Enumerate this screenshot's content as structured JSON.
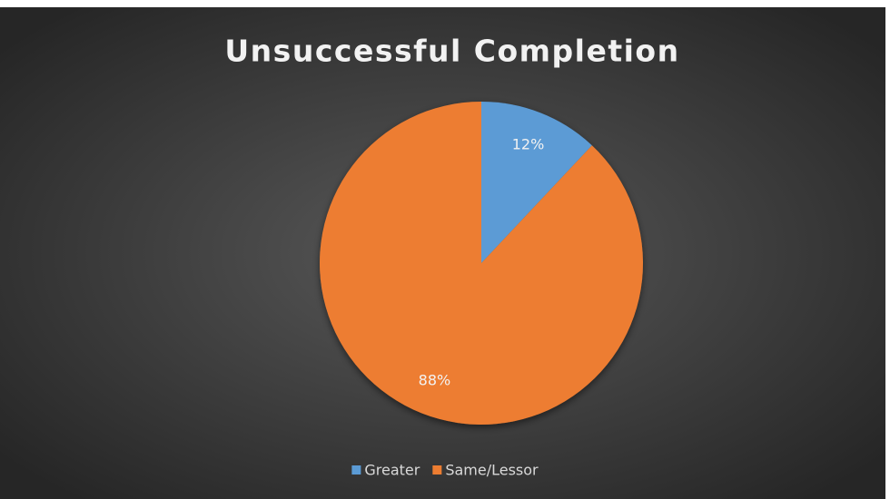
{
  "chart_data": {
    "type": "pie",
    "title": "Unsuccessful Completion",
    "categories": [
      "Greater",
      "Same/Lessor"
    ],
    "values": [
      12,
      88
    ],
    "value_labels": [
      "12%",
      "88%"
    ],
    "colors": [
      "#5b9bd5",
      "#ed7d31"
    ],
    "legend": "bottom"
  }
}
